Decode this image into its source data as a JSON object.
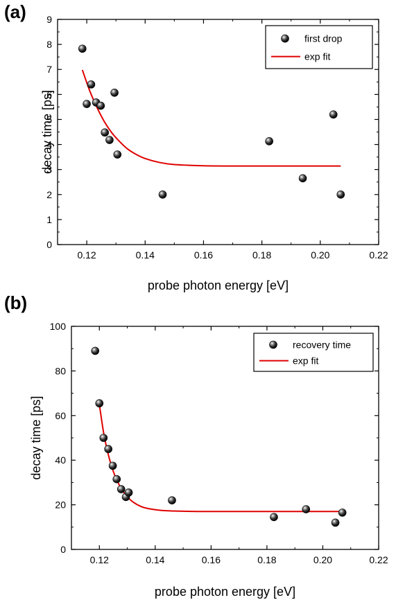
{
  "chart_data": [
    {
      "panel_label": "(a)",
      "type": "scatter",
      "xlabel": "probe photon energy [eV]",
      "ylabel": "decay time [ps]",
      "xlim": [
        0.11,
        0.22
      ],
      "ylim": [
        0,
        9
      ],
      "xticks": [
        0.12,
        0.14,
        0.16,
        0.18,
        0.2,
        0.22
      ],
      "xtick_labels": [
        "0.12",
        "0.14",
        "0.16",
        "0.18",
        "0.20",
        "0.22"
      ],
      "yticks": [
        0,
        1,
        2,
        3,
        4,
        5,
        6,
        7,
        8,
        9
      ],
      "ytick_labels": [
        "0",
        "1",
        "2",
        "3",
        "4",
        "5",
        "6",
        "7",
        "8",
        "9"
      ],
      "legend_position": "top-right",
      "series": [
        {
          "name": "first drop",
          "kind": "scatter",
          "color": "#111111",
          "x": [
            0.1185,
            0.12,
            0.1215,
            0.1232,
            0.1248,
            0.1262,
            0.1278,
            0.1295,
            0.1305,
            0.146,
            0.1825,
            0.194,
            0.2045,
            0.207
          ],
          "y": [
            7.83,
            5.62,
            6.4,
            5.68,
            5.55,
            4.48,
            4.18,
            6.07,
            3.6,
            2.0,
            4.13,
            2.65,
            5.2,
            2.0
          ]
        },
        {
          "name": "exp fit",
          "kind": "line",
          "color": "#e00000",
          "x": [
            0.1185,
            0.121,
            0.1235,
            0.126,
            0.1285,
            0.131,
            0.134,
            0.137,
            0.14,
            0.145,
            0.15,
            0.16,
            0.17,
            0.18,
            0.19,
            0.2,
            0.207
          ],
          "y": [
            6.98,
            6.15,
            5.48,
            4.92,
            4.48,
            4.15,
            3.82,
            3.6,
            3.44,
            3.28,
            3.2,
            3.15,
            3.14,
            3.14,
            3.14,
            3.14,
            3.14
          ]
        }
      ]
    },
    {
      "panel_label": "(b)",
      "type": "scatter",
      "xlabel": "probe photon energy [eV]",
      "ylabel": "decay time [ps]",
      "xlim": [
        0.11,
        0.22
      ],
      "ylim": [
        0,
        100
      ],
      "xticks": [
        0.12,
        0.14,
        0.16,
        0.18,
        0.2,
        0.22
      ],
      "xtick_labels": [
        "0.12",
        "0.14",
        "0.16",
        "0.18",
        "0.20",
        "0.22"
      ],
      "yticks": [
        0,
        20,
        40,
        60,
        80,
        100
      ],
      "ytick_labels": [
        "0",
        "20",
        "40",
        "60",
        "80",
        "100"
      ],
      "legend_position": "top-right",
      "series": [
        {
          "name": "recovery time",
          "kind": "scatter",
          "color": "#111111",
          "x": [
            0.1185,
            0.12,
            0.1215,
            0.1232,
            0.1248,
            0.1262,
            0.1278,
            0.1295,
            0.1305,
            0.146,
            0.1825,
            0.194,
            0.2045,
            0.207
          ],
          "y": [
            89.0,
            65.5,
            50.0,
            45.0,
            37.5,
            31.5,
            27.0,
            23.5,
            25.5,
            22.0,
            14.5,
            18.0,
            12.0,
            16.5
          ]
        },
        {
          "name": "exp fit",
          "kind": "line",
          "color": "#e00000",
          "x": [
            0.12,
            0.1215,
            0.123,
            0.1245,
            0.126,
            0.128,
            0.13,
            0.132,
            0.135,
            0.138,
            0.142,
            0.147,
            0.155,
            0.17,
            0.19,
            0.207
          ],
          "y": [
            65.0,
            52.5,
            43.5,
            36.8,
            31.8,
            27.0,
            23.6,
            21.3,
            19.2,
            18.2,
            17.5,
            17.2,
            17.0,
            17.0,
            17.0,
            17.0
          ]
        }
      ]
    }
  ]
}
